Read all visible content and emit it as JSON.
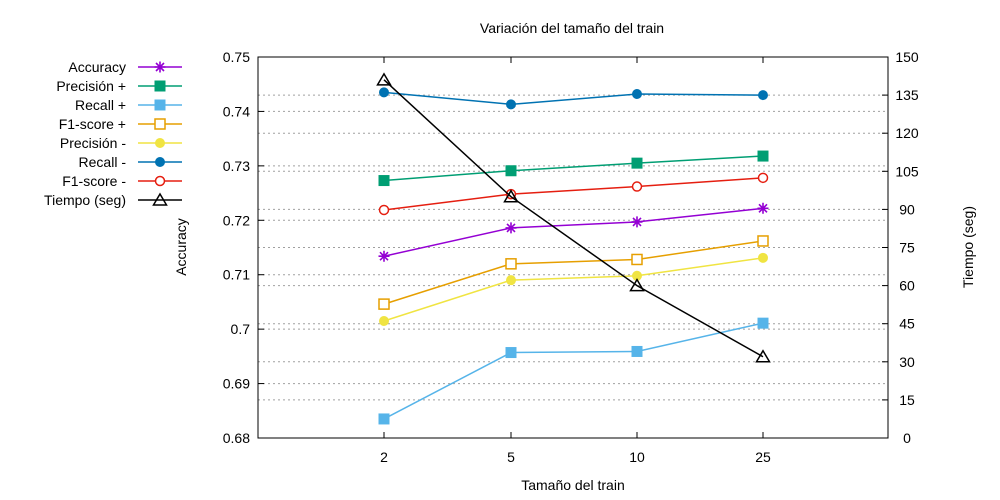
{
  "chart_data": {
    "type": "line",
    "title": "Variación del tamaño del train",
    "xlabel": "Tamaño del train",
    "ylabel": "Accuracy",
    "y2label": "Tiempo (seg)",
    "categories": [
      "2",
      "5",
      "10",
      "25"
    ],
    "ylim": [
      0.68,
      0.75
    ],
    "yticks": [
      "0.68",
      "0.69",
      "0.7",
      "0.71",
      "0.72",
      "0.73",
      "0.74",
      "0.75"
    ],
    "y2lim": [
      0,
      150
    ],
    "y2ticks": [
      "0",
      "15",
      "30",
      "45",
      "60",
      "75",
      "90",
      "105",
      "120",
      "135",
      "150"
    ],
    "grid": true,
    "legend_position": "outside-left",
    "series": [
      {
        "name": "Accuracy",
        "axis": "y",
        "color": "#9400d3",
        "marker": "star",
        "values": [
          0.7134,
          0.7186,
          0.7197,
          0.7222
        ]
      },
      {
        "name": "Precisión +",
        "axis": "y",
        "color": "#009e73",
        "marker": "square-filled",
        "values": [
          0.7273,
          0.7291,
          0.7305,
          0.7318
        ]
      },
      {
        "name": "Recall +",
        "axis": "y",
        "color": "#56b4e9",
        "marker": "square-filled",
        "values": [
          0.6835,
          0.6957,
          0.6959,
          0.7011
        ]
      },
      {
        "name": "F1-score +",
        "axis": "y",
        "color": "#e69f00",
        "marker": "square-open",
        "values": [
          0.7046,
          0.712,
          0.7128,
          0.7162
        ]
      },
      {
        "name": "Precisión -",
        "axis": "y",
        "color": "#f0e442",
        "marker": "circle-filled",
        "values": [
          0.7015,
          0.709,
          0.7098,
          0.7131
        ]
      },
      {
        "name": "Recall -",
        "axis": "y",
        "color": "#0072b2",
        "marker": "circle-filled",
        "values": [
          0.7435,
          0.7413,
          0.7432,
          0.743
        ]
      },
      {
        "name": "F1-score -",
        "axis": "y",
        "color": "#e51e10",
        "marker": "circle-open",
        "values": [
          0.7219,
          0.7248,
          0.7262,
          0.7278
        ]
      },
      {
        "name": "Tiempo (seg)",
        "axis": "y2",
        "color": "#000000",
        "marker": "triangle-open",
        "values": [
          141,
          95,
          60,
          32
        ]
      }
    ]
  }
}
